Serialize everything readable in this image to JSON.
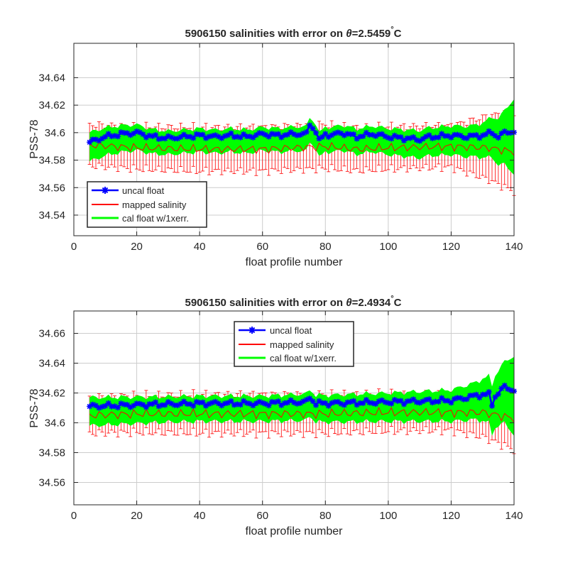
{
  "colors": {
    "uncal": "#0000ff",
    "mapped": "#ff0000",
    "cal_band": "#00ff00",
    "grid": "#cccccc",
    "axes": "#262626"
  },
  "chart_data": [
    {
      "type": "line",
      "title_prefix": "5906150 salinities with error on ",
      "title_symbol": "θ",
      "title_value": "=2.5459",
      "title_degree": "°",
      "title_unit": "C",
      "xlabel": "float profile number",
      "ylabel": "PSS-78",
      "xlim": [
        0,
        140
      ],
      "ylim": [
        34.525,
        34.665
      ],
      "xticks": [
        0,
        20,
        40,
        60,
        80,
        100,
        120,
        140
      ],
      "yticks": [
        34.54,
        34.56,
        34.58,
        34.6,
        34.62,
        34.64
      ],
      "ytick_labels": [
        "34.54",
        "34.56",
        "34.58",
        "34.6",
        "34.62",
        "34.64"
      ],
      "grid": true,
      "legend_position": "bottom-left",
      "legend": [
        "uncal float",
        "mapped salinity",
        "cal float w/1xerr."
      ],
      "x_start": 5,
      "x_end": 140,
      "uncal_keypoints": [
        [
          5,
          34.593
        ],
        [
          10,
          34.597
        ],
        [
          15,
          34.599
        ],
        [
          20,
          34.6
        ],
        [
          25,
          34.597
        ],
        [
          30,
          34.596
        ],
        [
          35,
          34.597
        ],
        [
          40,
          34.598
        ],
        [
          45,
          34.597
        ],
        [
          50,
          34.598
        ],
        [
          55,
          34.597
        ],
        [
          60,
          34.599
        ],
        [
          65,
          34.598
        ],
        [
          70,
          34.599
        ],
        [
          74,
          34.599
        ],
        [
          75,
          34.606
        ],
        [
          77,
          34.601
        ],
        [
          78,
          34.594
        ],
        [
          80,
          34.599
        ],
        [
          82,
          34.598
        ],
        [
          85,
          34.6
        ],
        [
          90,
          34.597
        ],
        [
          95,
          34.599
        ],
        [
          100,
          34.597
        ],
        [
          105,
          34.596
        ],
        [
          110,
          34.595
        ],
        [
          113,
          34.597
        ],
        [
          115,
          34.597
        ],
        [
          120,
          34.598
        ],
        [
          125,
          34.597
        ],
        [
          130,
          34.598
        ],
        [
          133,
          34.6
        ],
        [
          135,
          34.597
        ],
        [
          137,
          34.6
        ],
        [
          140,
          34.601
        ]
      ],
      "mapped_keypoints": [
        [
          5,
          34.591
        ],
        [
          20,
          34.589
        ],
        [
          40,
          34.588
        ],
        [
          60,
          34.588
        ],
        [
          80,
          34.59
        ],
        [
          90,
          34.588
        ],
        [
          100,
          34.589
        ],
        [
          120,
          34.59
        ],
        [
          132,
          34.589
        ],
        [
          140,
          34.586
        ]
      ],
      "mapped_err_keypoints": [
        [
          5,
          0.015
        ],
        [
          40,
          0.016
        ],
        [
          80,
          0.016
        ],
        [
          120,
          0.015
        ],
        [
          140,
          0.029
        ]
      ],
      "band_halfwidth_keypoints": [
        [
          5,
          0.008
        ],
        [
          30,
          0.006
        ],
        [
          60,
          0.006
        ],
        [
          100,
          0.007
        ],
        [
          120,
          0.008
        ],
        [
          128,
          0.009
        ],
        [
          133,
          0.012
        ],
        [
          137,
          0.017
        ],
        [
          140,
          0.025
        ]
      ]
    },
    {
      "type": "line",
      "title_prefix": "5906150 salinities with error on ",
      "title_symbol": "θ",
      "title_value": "=2.4934",
      "title_degree": "°",
      "title_unit": "C",
      "xlabel": "float profile number",
      "ylabel": "PSS-78",
      "xlim": [
        0,
        140
      ],
      "ylim": [
        34.545,
        34.675
      ],
      "xticks": [
        0,
        20,
        40,
        60,
        80,
        100,
        120,
        140
      ],
      "yticks": [
        34.56,
        34.58,
        34.6,
        34.62,
        34.64,
        34.66
      ],
      "ytick_labels": [
        "34.56",
        "34.58",
        "34.6",
        "34.62",
        "34.64",
        "34.66"
      ],
      "grid": true,
      "legend_position": "top-center",
      "legend": [
        "uncal float",
        "mapped salinity",
        "cal float w/1xerr."
      ],
      "x_start": 5,
      "x_end": 140,
      "uncal_keypoints": [
        [
          5,
          34.611
        ],
        [
          20,
          34.612
        ],
        [
          40,
          34.613
        ],
        [
          60,
          34.613
        ],
        [
          74,
          34.614
        ],
        [
          75,
          34.617
        ],
        [
          77,
          34.613
        ],
        [
          80,
          34.613
        ],
        [
          100,
          34.614
        ],
        [
          120,
          34.615
        ],
        [
          125,
          34.617
        ],
        [
          130,
          34.619
        ],
        [
          132,
          34.619
        ],
        [
          133,
          34.612
        ],
        [
          134,
          34.618
        ],
        [
          137,
          34.624
        ],
        [
          140,
          34.622
        ]
      ],
      "mapped_keypoints": [
        [
          5,
          34.605
        ],
        [
          20,
          34.606
        ],
        [
          40,
          34.606
        ],
        [
          60,
          34.606
        ],
        [
          80,
          34.606
        ],
        [
          100,
          34.607
        ],
        [
          120,
          34.607
        ],
        [
          130,
          34.607
        ],
        [
          140,
          34.603
        ]
      ],
      "mapped_err_keypoints": [
        [
          5,
          0.012
        ],
        [
          40,
          0.013
        ],
        [
          80,
          0.013
        ],
        [
          120,
          0.012
        ],
        [
          140,
          0.021
        ]
      ],
      "band_halfwidth_keypoints": [
        [
          5,
          0.007
        ],
        [
          30,
          0.006
        ],
        [
          60,
          0.006
        ],
        [
          100,
          0.007
        ],
        [
          120,
          0.008
        ],
        [
          128,
          0.01
        ],
        [
          133,
          0.014
        ],
        [
          137,
          0.018
        ],
        [
          140,
          0.024
        ]
      ]
    }
  ]
}
